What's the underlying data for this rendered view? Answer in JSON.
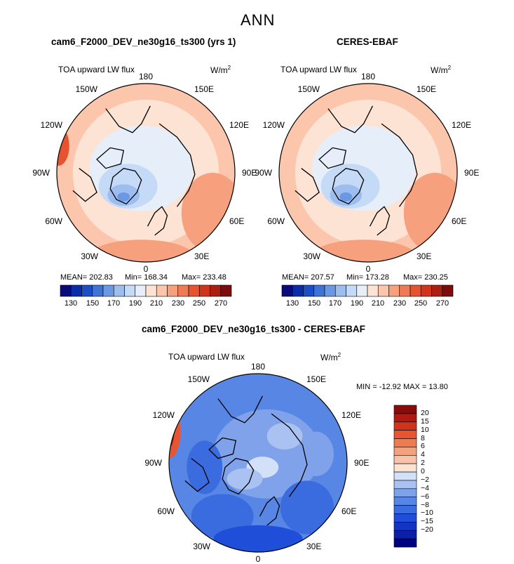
{
  "figure": {
    "title": "ANN"
  },
  "colors": {
    "abs_scale": [
      "#0a0a7a",
      "#0b2ca8",
      "#1c4ec6",
      "#3d74d6",
      "#6b98e3",
      "#9cbdee",
      "#c5daf6",
      "#e5eef9",
      "#fde3d4",
      "#fbc6ab",
      "#f6a07e",
      "#f07a55",
      "#e8532f",
      "#d0351b",
      "#ac1d12",
      "#7c0b0b"
    ],
    "diff_scale": [
      "#000080",
      "#0b1fa8",
      "#1335c4",
      "#1f4fd8",
      "#3a6bdf",
      "#5886e4",
      "#7fa2ea",
      "#a9c2f1",
      "#d3e1f8",
      "#fbe2d3",
      "#f8c3a7",
      "#f4a17c",
      "#ef7b52",
      "#e65632",
      "#d0341c",
      "#b01a10",
      "#8b0b0b"
    ]
  },
  "chart_data": [
    {
      "type": "heatmap",
      "projection": "north-polar-stereographic",
      "title": "cam6_F2000_DEV_ne30g16_ts300 (yrs 1)",
      "left_label": "TOA upward LW flux",
      "right_label": "W/m",
      "units_exp": "2",
      "longitude_labels": [
        "180",
        "150E",
        "120E",
        "90E",
        "60E",
        "30E",
        "0",
        "30W",
        "60W",
        "90W",
        "120W",
        "150W"
      ],
      "stats": {
        "mean_text": "MEAN= 202.83",
        "min_text": "Min= 168.34",
        "max_text": "Max= 233.48"
      },
      "colorbar_ticks": [
        "130",
        "150",
        "170",
        "190",
        "210",
        "230",
        "250",
        "270"
      ]
    },
    {
      "type": "heatmap",
      "projection": "north-polar-stereographic",
      "title": "CERES-EBAF",
      "left_label": "TOA upward LW flux",
      "right_label": "W/m",
      "units_exp": "2",
      "longitude_labels": [
        "180",
        "150E",
        "120E",
        "90E",
        "60E",
        "30E",
        "0",
        "30W",
        "60W",
        "90W",
        "120W",
        "150W"
      ],
      "stats": {
        "mean_text": "MEAN= 207.57",
        "min_text": "Min= 173.28",
        "max_text": "Max= 230.25"
      },
      "colorbar_ticks": [
        "130",
        "150",
        "170",
        "190",
        "210",
        "230",
        "250",
        "270"
      ]
    },
    {
      "type": "heatmap",
      "projection": "north-polar-stereographic",
      "title": "cam6_F2000_DEV_ne30g16_ts300 - CERES-EBAF",
      "left_label": "TOA upward LW flux",
      "right_label": "W/m",
      "units_exp": "2",
      "longitude_labels": [
        "180",
        "150E",
        "120E",
        "90E",
        "60E",
        "30E",
        "0",
        "30W",
        "60W",
        "90W",
        "120W",
        "150W"
      ],
      "stats_text": "MIN = -12.92 MAX =   13.80",
      "colorbar_ticks": [
        "20",
        "15",
        "10",
        "8",
        "6",
        "4",
        "2",
        "0",
        "−2",
        "−4",
        "−6",
        "−8",
        "−10",
        "−15",
        "−20"
      ]
    }
  ]
}
